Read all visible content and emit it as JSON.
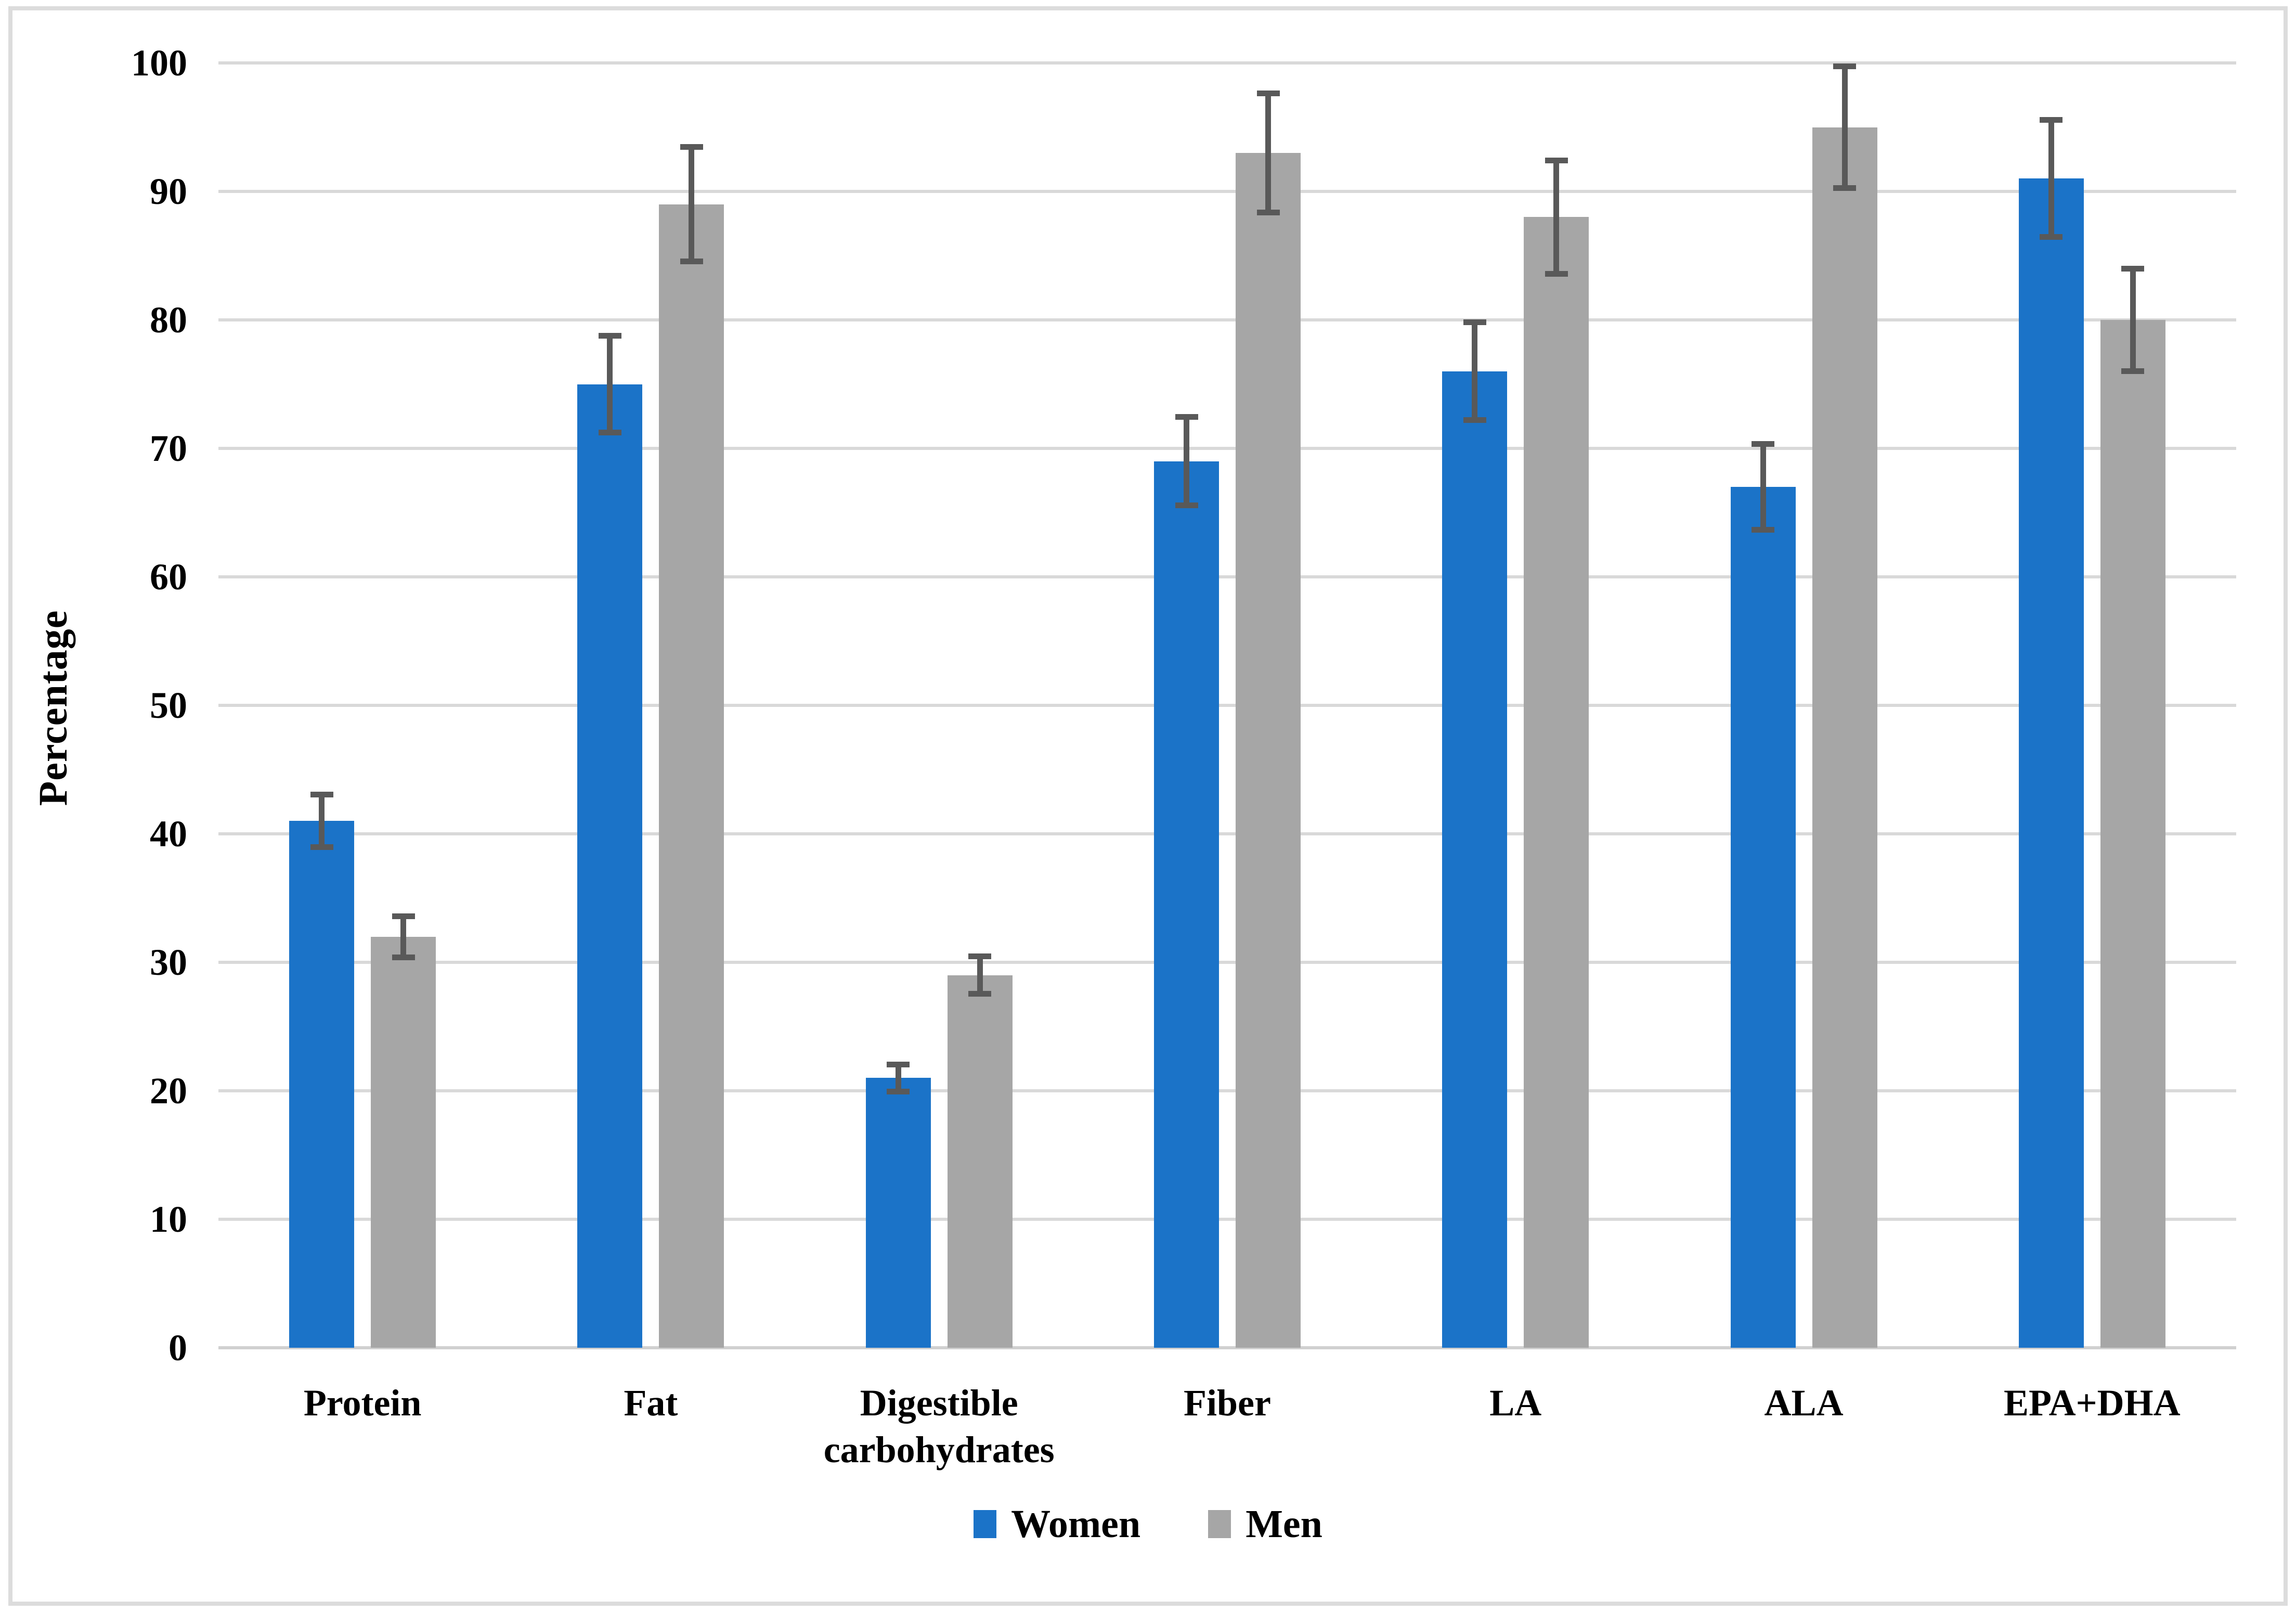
{
  "figure": {
    "ylabel": "Percentage"
  },
  "chart_data": {
    "type": "bar",
    "title": "",
    "categories": [
      "Protein",
      "Fat",
      "Digestible carbohydrates",
      "Fiber",
      "LA",
      "ALA",
      "EPA+DHA"
    ],
    "series": [
      {
        "name": "Women",
        "color": "#1b73c8",
        "values": [
          41,
          75,
          21,
          69,
          76,
          67,
          91
        ],
        "errors": [
          2.05,
          3.75,
          1.05,
          3.45,
          3.8,
          3.35,
          4.55
        ]
      },
      {
        "name": "Men",
        "color": "#a6a6a6",
        "values": [
          32,
          89,
          29,
          93,
          88,
          95,
          80
        ],
        "errors": [
          1.6,
          4.45,
          1.45,
          4.65,
          4.4,
          4.75,
          4.0
        ]
      }
    ],
    "xlabel": "",
    "ylabel": "Percentage",
    "ylim": [
      0,
      100
    ],
    "yticks": [
      0,
      10,
      20,
      30,
      40,
      50,
      60,
      70,
      80,
      90,
      100
    ],
    "grid": true,
    "legend_position": "bottom",
    "error_bar_color": "#595959",
    "gridline_color": "#d9d9d9",
    "axis_line_color": "#d0d0d0",
    "border_color": "#dcdcdc",
    "text_color": "#000000"
  }
}
